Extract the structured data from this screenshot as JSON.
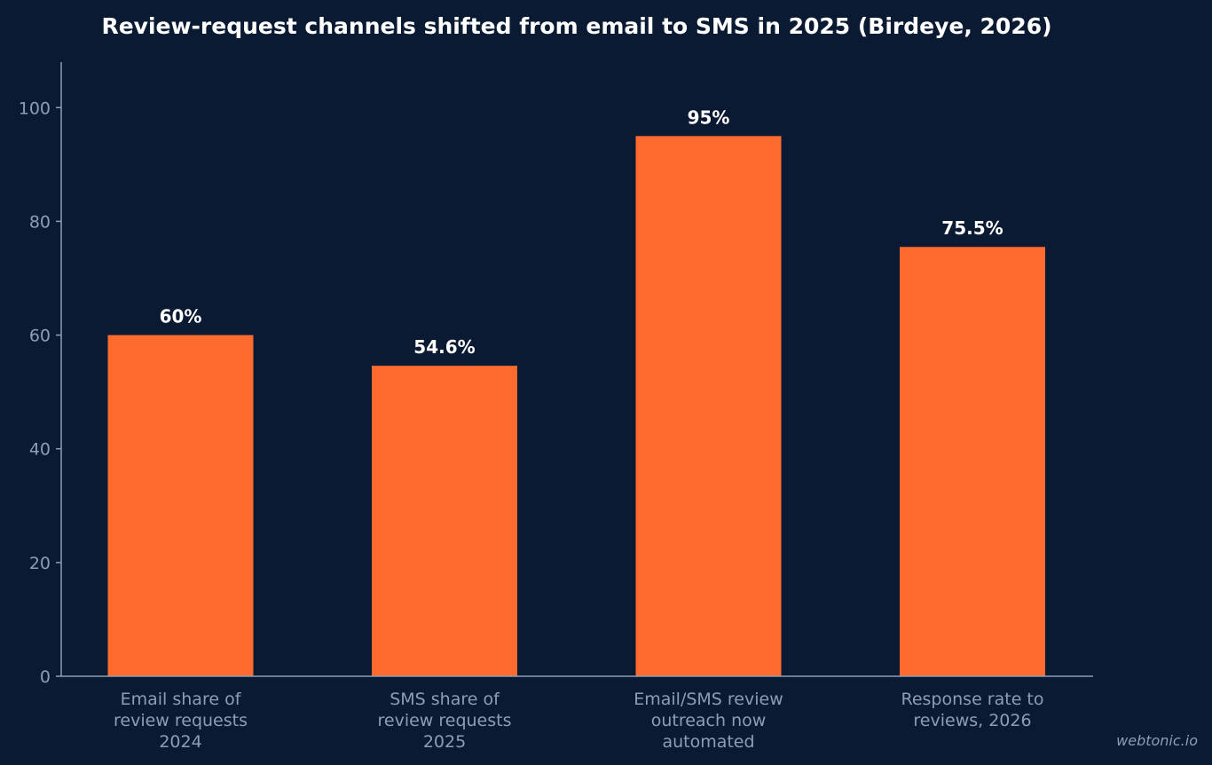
{
  "chart_data": {
    "type": "bar",
    "title": "Review-request channels shifted from email to SMS in 2025 (Birdeye, 2026)",
    "xlabel": "",
    "ylabel": "",
    "ylim": [
      0,
      108
    ],
    "yticks": [
      0,
      20,
      40,
      60,
      80,
      100
    ],
    "ytick_labels": [
      "0",
      "20",
      "40",
      "60",
      "80",
      "100"
    ],
    "grid": false,
    "categories": [
      [
        "Email share of",
        "review requests",
        "2024"
      ],
      [
        "SMS share of",
        "review requests",
        "2025"
      ],
      [
        "Email/SMS review",
        "outreach now",
        "automated"
      ],
      [
        "Response rate to",
        "reviews, 2026"
      ]
    ],
    "values": [
      60,
      54.6,
      95,
      75.5
    ],
    "value_labels": [
      "60%",
      "54.6%",
      "95%",
      "75.5%"
    ],
    "bar_color": "#ff6b2e",
    "background_color": "#0b1a33"
  },
  "credit": "webtonic.io"
}
